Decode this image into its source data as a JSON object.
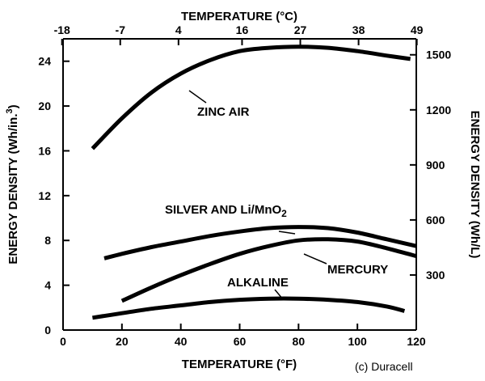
{
  "chart_data": {
    "type": "line",
    "x": {
      "label": "TEMPERATURE (°F)",
      "lim": [
        0,
        120
      ],
      "ticks": [
        0,
        20,
        40,
        60,
        80,
        100,
        120
      ]
    },
    "x_top": {
      "label": "TEMPERATURE (°C)",
      "lim": [
        -17.8,
        48.9
      ],
      "ticks": [
        -18,
        -7,
        4,
        16,
        27,
        38,
        49
      ]
    },
    "y": {
      "label_main": "ENERGY DENSITY (Wh/in.",
      "label_sup": "3",
      "label_end": ")",
      "lim": [
        0,
        26
      ],
      "ticks": [
        0,
        4,
        8,
        12,
        16,
        20,
        24
      ]
    },
    "y_right": {
      "label": "ENERGY DENSITY (Wh/L)",
      "lim": [
        0,
        1587
      ],
      "ticks": [
        300,
        600,
        900,
        1200,
        1500
      ]
    },
    "series": [
      {
        "name": "ZINC AIR",
        "points": [
          [
            10,
            16.2
          ],
          [
            20,
            18.9
          ],
          [
            30,
            21.2
          ],
          [
            40,
            22.9
          ],
          [
            50,
            24.1
          ],
          [
            60,
            24.9
          ],
          [
            70,
            25.2
          ],
          [
            80,
            25.3
          ],
          [
            90,
            25.2
          ],
          [
            100,
            24.9
          ],
          [
            110,
            24.5
          ],
          [
            118,
            24.2
          ]
        ]
      },
      {
        "name": "SILVER AND Li/MnO",
        "name_sub": "2",
        "points": [
          [
            14,
            6.4
          ],
          [
            20,
            6.8
          ],
          [
            30,
            7.4
          ],
          [
            40,
            7.9
          ],
          [
            50,
            8.4
          ],
          [
            60,
            8.8
          ],
          [
            70,
            9.1
          ],
          [
            80,
            9.2
          ],
          [
            90,
            9.1
          ],
          [
            100,
            8.7
          ],
          [
            110,
            8.1
          ],
          [
            120,
            7.5
          ]
        ]
      },
      {
        "name": "MERCURY",
        "points": [
          [
            20,
            2.6
          ],
          [
            30,
            3.8
          ],
          [
            40,
            4.9
          ],
          [
            50,
            5.9
          ],
          [
            60,
            6.8
          ],
          [
            70,
            7.5
          ],
          [
            80,
            8.0
          ],
          [
            90,
            8.1
          ],
          [
            100,
            7.9
          ],
          [
            110,
            7.3
          ],
          [
            120,
            6.6
          ]
        ]
      },
      {
        "name": "ALKALINE",
        "points": [
          [
            10,
            1.1
          ],
          [
            20,
            1.5
          ],
          [
            30,
            1.9
          ],
          [
            40,
            2.2
          ],
          [
            50,
            2.5
          ],
          [
            60,
            2.7
          ],
          [
            70,
            2.8
          ],
          [
            80,
            2.8
          ],
          [
            90,
            2.7
          ],
          [
            100,
            2.5
          ],
          [
            110,
            2.1
          ],
          [
            116,
            1.7
          ]
        ]
      }
    ],
    "credit": "(c) Duracell",
    "grid": false,
    "legend": "inline labels"
  }
}
